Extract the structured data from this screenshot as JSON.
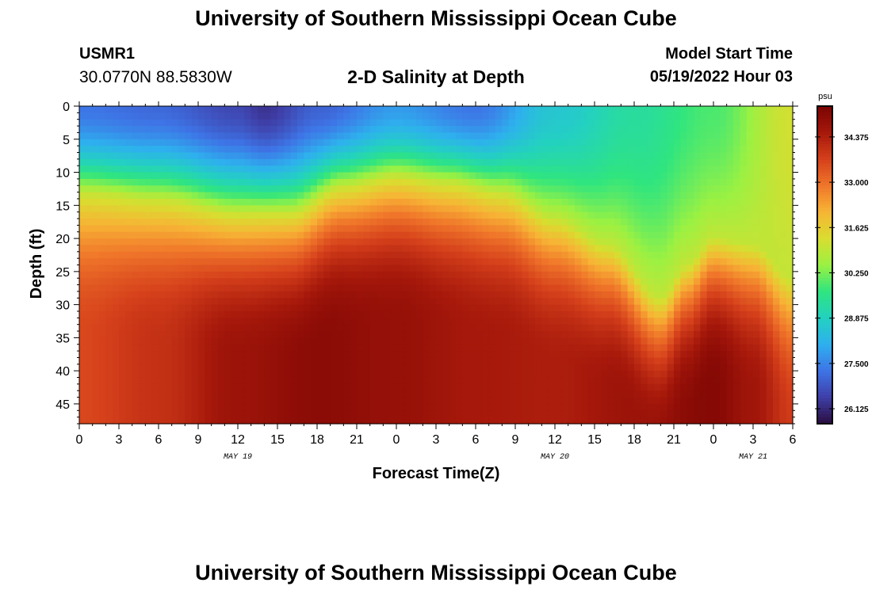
{
  "header": {
    "title": "University of Southern Mississippi Ocean Cube",
    "station_id": "USMR1",
    "coordinates": "30.0770N  88.5830W",
    "plot_title": "2-D Salinity at Depth",
    "model_start_label": "Model Start Time",
    "model_start_value": "05/19/2022 Hour 03"
  },
  "footer": {
    "title": "University of Southern Mississippi Ocean Cube"
  },
  "colors": {
    "colormap": [
      "#2a0d3f",
      "#3f3fa8",
      "#3e74e6",
      "#2eb0ee",
      "#23d1c0",
      "#2fe57f",
      "#9bf142",
      "#d9dd30",
      "#f7b435",
      "#f0762a",
      "#d5401b",
      "#a6180b",
      "#7a0403"
    ]
  },
  "chart_data": {
    "type": "heatmap",
    "title": "",
    "xlabel": "Forecast Time(Z)",
    "ylabel": "Depth (ft)",
    "x_range": [
      0,
      54
    ],
    "y_range": [
      0,
      48
    ],
    "y_inverted": true,
    "x_ticks": [
      0,
      3,
      6,
      9,
      12,
      15,
      18,
      21,
      24,
      27,
      30,
      33,
      36,
      39,
      42,
      45,
      48,
      51,
      54
    ],
    "x_tick_labels": [
      "0",
      "3",
      "6",
      "9",
      "12",
      "15",
      "18",
      "21",
      "0",
      "3",
      "6",
      "9",
      "12",
      "15",
      "18",
      "21",
      "0",
      "3",
      "6"
    ],
    "date_labels": [
      {
        "x": 12,
        "label": "MAY 19"
      },
      {
        "x": 36,
        "label": "MAY 20"
      },
      {
        "x": 51,
        "label": "MAY 21"
      }
    ],
    "y_ticks": [
      0,
      5,
      10,
      15,
      20,
      25,
      30,
      35,
      40,
      45
    ],
    "y_tick_labels": [
      "0",
      "5",
      "10",
      "15",
      "20",
      "25",
      "30",
      "35",
      "40",
      "45"
    ],
    "colorbar": {
      "unit": "psu",
      "min": 25.67,
      "max": 35.31,
      "ticks": [
        26.125,
        27.5,
        28.875,
        30.25,
        31.625,
        33.0,
        34.375
      ],
      "tick_labels": [
        "26.125",
        "27.500",
        "28.875",
        "30.250",
        "31.625",
        "33.000",
        "34.375"
      ]
    },
    "grid": false,
    "surface_salinity_psu": [
      {
        "time": 0,
        "value": 27.3
      },
      {
        "time": 6,
        "value": 27.1
      },
      {
        "time": 12,
        "value": 26.6
      },
      {
        "time": 14,
        "value": 26.3
      },
      {
        "time": 18,
        "value": 27.0
      },
      {
        "time": 24,
        "value": 27.8
      },
      {
        "time": 30,
        "value": 27.3
      },
      {
        "time": 36,
        "value": 28.6
      },
      {
        "time": 42,
        "value": 29.3
      },
      {
        "time": 48,
        "value": 29.9
      },
      {
        "time": 54,
        "value": 31.2
      }
    ],
    "halocline_depth_ft": [
      {
        "time": 0,
        "value": 13
      },
      {
        "time": 6,
        "value": 14
      },
      {
        "time": 12,
        "value": 16
      },
      {
        "time": 16,
        "value": 16
      },
      {
        "time": 20,
        "value": 12
      },
      {
        "time": 24,
        "value": 10.5
      },
      {
        "time": 28,
        "value": 11.5
      },
      {
        "time": 32,
        "value": 13
      },
      {
        "time": 36,
        "value": 17
      },
      {
        "time": 40,
        "value": 21
      },
      {
        "time": 44,
        "value": 29
      },
      {
        "time": 46,
        "value": 24
      },
      {
        "time": 48,
        "value": 20
      },
      {
        "time": 51,
        "value": 21
      },
      {
        "time": 54,
        "value": 26
      }
    ],
    "bottom_salinity_psu": [
      {
        "time": 0,
        "value": 33.6
      },
      {
        "time": 6,
        "value": 34.0
      },
      {
        "time": 12,
        "value": 34.7
      },
      {
        "time": 18,
        "value": 35.0
      },
      {
        "time": 24,
        "value": 34.8
      },
      {
        "time": 30,
        "value": 34.5
      },
      {
        "time": 36,
        "value": 34.4
      },
      {
        "time": 42,
        "value": 34.7
      },
      {
        "time": 48,
        "value": 35.1
      },
      {
        "time": 51,
        "value": 34.6
      },
      {
        "time": 54,
        "value": 33.8
      }
    ]
  }
}
